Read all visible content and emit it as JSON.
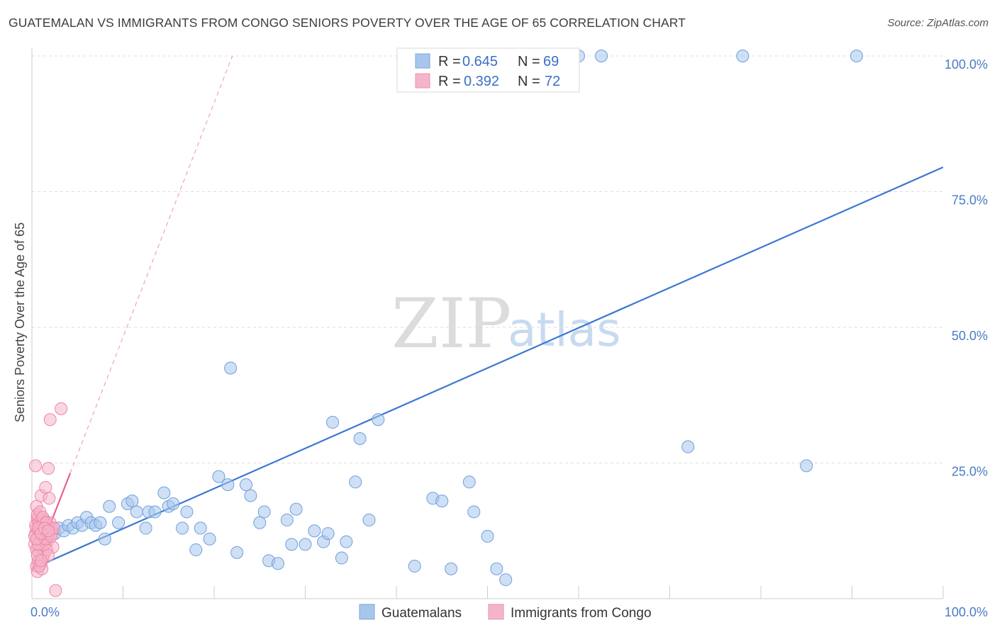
{
  "title": "GUATEMALAN VS IMMIGRANTS FROM CONGO SENIORS POVERTY OVER THE AGE OF 65 CORRELATION CHART",
  "source": "Source: ZipAtlas.com",
  "watermark": {
    "zip": "ZIP",
    "atlas": "atlas"
  },
  "colors": {
    "blue": "#3a78d2",
    "blue_fill": "#a8c6ec",
    "pink": "#e8608e",
    "pink_fill": "#f5b4c9",
    "grid": "#dddddd",
    "tick_text": "#4a7cc4"
  },
  "legend": {
    "r_label": "R =",
    "n_label": "N =",
    "entries": [
      {
        "r": "0.645",
        "n": "69"
      },
      {
        "r": "0.392",
        "n": "72"
      }
    ]
  },
  "chart_data": {
    "type": "scatter",
    "xlabel": "",
    "ylabel": "Seniors Poverty Over the Age of 65",
    "xlim": [
      0,
      100
    ],
    "ylim": [
      0,
      100
    ],
    "x_tick_labels": [
      "0.0%",
      "100.0%"
    ],
    "y_tick_labels": [
      "25.0%",
      "50.0%",
      "75.0%",
      "100.0%"
    ],
    "y_ticks": [
      25,
      50,
      75,
      100
    ],
    "grid": true,
    "series": [
      {
        "name": "Guatemalans",
        "trend": {
          "x0": 0,
          "y0": 5.5,
          "x1": 100,
          "y1": 79.5,
          "style": "solid"
        },
        "points": [
          [
            1.5,
            11.5
          ],
          [
            2.0,
            12.5
          ],
          [
            2.5,
            12.0
          ],
          [
            3.0,
            13.0
          ],
          [
            3.5,
            12.5
          ],
          [
            4.0,
            13.5
          ],
          [
            4.5,
            13.0
          ],
          [
            5.0,
            14.0
          ],
          [
            5.5,
            13.5
          ],
          [
            6.0,
            15.0
          ],
          [
            6.5,
            14.0
          ],
          [
            7.0,
            13.5
          ],
          [
            7.5,
            14.0
          ],
          [
            8.0,
            11.0
          ],
          [
            8.5,
            17.0
          ],
          [
            9.5,
            14.0
          ],
          [
            10.5,
            17.5
          ],
          [
            11.0,
            18.0
          ],
          [
            11.5,
            16.0
          ],
          [
            12.5,
            13.0
          ],
          [
            12.8,
            16.0
          ],
          [
            13.5,
            16.0
          ],
          [
            14.5,
            19.5
          ],
          [
            15.0,
            17.0
          ],
          [
            15.5,
            17.5
          ],
          [
            16.5,
            13.0
          ],
          [
            17.0,
            16.0
          ],
          [
            18.0,
            9.0
          ],
          [
            18.5,
            13.0
          ],
          [
            19.5,
            11.0
          ],
          [
            20.5,
            22.5
          ],
          [
            21.5,
            21.0
          ],
          [
            21.8,
            42.5
          ],
          [
            22.5,
            8.5
          ],
          [
            23.5,
            21.0
          ],
          [
            24.0,
            19.0
          ],
          [
            25.0,
            14.0
          ],
          [
            25.5,
            16.0
          ],
          [
            26.0,
            7.0
          ],
          [
            27.0,
            6.5
          ],
          [
            28.0,
            14.5
          ],
          [
            28.5,
            10.0
          ],
          [
            29.0,
            16.5
          ],
          [
            30.0,
            10.0
          ],
          [
            31.0,
            12.5
          ],
          [
            32.0,
            10.5
          ],
          [
            32.5,
            12.0
          ],
          [
            33.0,
            32.5
          ],
          [
            34.0,
            7.5
          ],
          [
            34.5,
            10.5
          ],
          [
            35.5,
            21.5
          ],
          [
            36.0,
            29.5
          ],
          [
            37.0,
            14.5
          ],
          [
            38.0,
            33.0
          ],
          [
            42.0,
            6.0
          ],
          [
            44.0,
            18.5
          ],
          [
            45.0,
            18.0
          ],
          [
            46.0,
            5.5
          ],
          [
            48.0,
            21.5
          ],
          [
            48.5,
            16.0
          ],
          [
            50.0,
            11.5
          ],
          [
            51.0,
            5.5
          ],
          [
            52.0,
            3.5
          ],
          [
            72.0,
            28.0
          ],
          [
            85.0,
            24.5
          ],
          [
            60.0,
            100.0
          ],
          [
            62.5,
            100.0
          ],
          [
            78.0,
            100.0
          ],
          [
            90.5,
            100.0
          ]
        ]
      },
      {
        "name": "Immigrants from Congo",
        "trend": {
          "x0": 0,
          "y0": 5.0,
          "x1": 22.0,
          "y1": 100.0,
          "style": "dashed",
          "solid_until_x": 4.2
        },
        "points": [
          [
            0.4,
            24.5
          ],
          [
            0.5,
            17.0
          ],
          [
            0.6,
            15.0
          ],
          [
            0.7,
            14.0
          ],
          [
            0.8,
            13.0
          ],
          [
            0.9,
            12.0
          ],
          [
            1.0,
            11.0
          ],
          [
            1.0,
            19.0
          ],
          [
            1.1,
            10.0
          ],
          [
            1.2,
            9.0
          ],
          [
            1.3,
            8.0
          ],
          [
            1.3,
            14.5
          ],
          [
            1.4,
            13.5
          ],
          [
            1.5,
            12.5
          ],
          [
            1.5,
            20.5
          ],
          [
            1.6,
            11.5
          ],
          [
            1.7,
            10.5
          ],
          [
            1.8,
            24.0
          ],
          [
            1.9,
            18.5
          ],
          [
            2.0,
            14.0
          ],
          [
            2.0,
            33.0
          ],
          [
            2.1,
            13.0
          ],
          [
            2.2,
            12.0
          ],
          [
            2.3,
            9.5
          ],
          [
            0.5,
            6.0
          ],
          [
            0.6,
            5.0
          ],
          [
            0.7,
            7.0
          ],
          [
            0.8,
            8.5
          ],
          [
            0.9,
            9.5
          ],
          [
            1.0,
            6.5
          ],
          [
            1.1,
            5.5
          ],
          [
            1.2,
            7.5
          ],
          [
            1.3,
            11.0
          ],
          [
            0.4,
            12.0
          ],
          [
            0.5,
            13.0
          ],
          [
            0.6,
            14.5
          ],
          [
            0.7,
            12.5
          ],
          [
            0.8,
            11.5
          ],
          [
            0.9,
            10.5
          ],
          [
            1.0,
            13.5
          ],
          [
            1.2,
            12.0
          ],
          [
            1.4,
            10.0
          ],
          [
            1.6,
            9.0
          ],
          [
            1.8,
            8.0
          ],
          [
            0.3,
            10.0
          ],
          [
            0.3,
            11.5
          ],
          [
            0.4,
            13.5
          ],
          [
            0.5,
            9.0
          ],
          [
            0.6,
            8.0
          ],
          [
            0.7,
            10.0
          ],
          [
            0.8,
            14.0
          ],
          [
            0.9,
            12.5
          ],
          [
            1.1,
            14.5
          ],
          [
            1.3,
            12.0
          ],
          [
            1.5,
            11.0
          ],
          [
            1.7,
            13.5
          ],
          [
            1.9,
            12.0
          ],
          [
            2.1,
            11.5
          ],
          [
            0.6,
            15.5
          ],
          [
            0.9,
            16.0
          ],
          [
            1.2,
            15.0
          ],
          [
            1.6,
            14.0
          ],
          [
            2.4,
            13.0
          ],
          [
            0.5,
            11.0
          ],
          [
            0.7,
            13.0
          ],
          [
            1.0,
            12.0
          ],
          [
            1.4,
            13.0
          ],
          [
            1.8,
            12.5
          ],
          [
            3.2,
            35.0
          ],
          [
            2.6,
            1.5
          ],
          [
            0.8,
            6.0
          ],
          [
            1.0,
            7.0
          ]
        ]
      }
    ]
  }
}
